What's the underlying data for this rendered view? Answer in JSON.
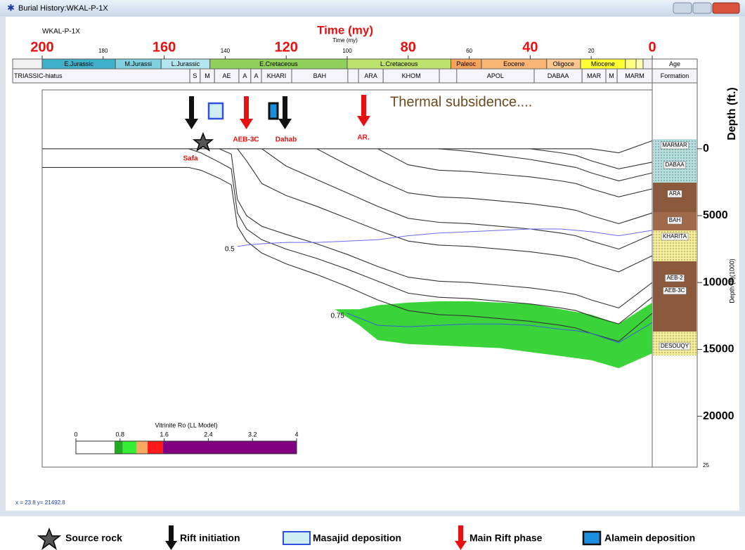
{
  "window_title": "Burial History:WKAL-P-1X",
  "status": "x = 23.8 y= 21492.8",
  "legend": [
    "Source rock",
    "Rift initiation",
    "Masajid deposition",
    "Main Rift phase",
    "Alamein deposition"
  ],
  "chart_data": {
    "type": "line",
    "well": "WKAL-P-1X",
    "title": "Time (my)",
    "x_label": "Time (my)",
    "y_label": "Depth (ft.)",
    "y2_label": "Depth (ft)(1000)",
    "y2_bottom_label": "25",
    "xlim": [
      200,
      0
    ],
    "xticks": [
      200,
      160,
      120,
      80,
      40,
      0
    ],
    "minor_xticks": [
      180,
      140,
      100,
      60,
      20
    ],
    "ylim": [
      23800,
      -4400
    ],
    "yticks": [
      0,
      5000,
      10000,
      15000,
      20000
    ],
    "x": [
      200,
      152,
      148,
      142,
      138,
      136,
      133,
      128,
      120,
      110,
      100,
      90,
      80,
      70,
      60,
      50,
      40,
      30,
      25,
      20,
      11,
      0
    ],
    "series": [
      {
        "color": "#333333",
        "values": [
          0,
          0,
          0,
          0,
          0,
          0,
          0,
          0,
          0,
          0,
          0,
          0,
          0,
          0,
          0,
          0,
          0,
          0,
          0,
          0,
          300,
          -600
        ]
      },
      {
        "color": "#333333",
        "values": [
          1400,
          1400,
          1600,
          2200,
          2700,
          5800,
          6900,
          7800,
          8600,
          9400,
          10300,
          11300,
          12100,
          12400,
          12500,
          12700,
          12900,
          13200,
          13400,
          13800,
          14400,
          12300
        ]
      },
      {
        "color": "#333333",
        "values": [
          null,
          0,
          300,
          1000,
          1500,
          4800,
          6000,
          6800,
          7500,
          8200,
          9000,
          9900,
          10800,
          11100,
          11200,
          11400,
          11600,
          11900,
          12100,
          12500,
          13100,
          11100
        ]
      },
      {
        "color": "#333333",
        "values": [
          null,
          null,
          null,
          0,
          400,
          3800,
          5000,
          5800,
          6400,
          7100,
          7900,
          8800,
          9600,
          9900,
          10000,
          10200,
          10400,
          10700,
          10900,
          11300,
          11900,
          10000
        ]
      },
      {
        "color": "#333333",
        "values": [
          null,
          null,
          null,
          null,
          null,
          0,
          900,
          2600,
          3500,
          4300,
          5200,
          6100,
          6900,
          7200,
          7300,
          7500,
          7700,
          8000,
          8200,
          8600,
          9200,
          8000
        ]
      },
      {
        "color": "#333333",
        "values": [
          null,
          null,
          null,
          null,
          null,
          null,
          null,
          0,
          1300,
          2300,
          3300,
          4300,
          5200,
          5500,
          5600,
          5800,
          6000,
          6300,
          6500,
          6900,
          7500,
          6400
        ]
      },
      {
        "color": "#333333",
        "values": [
          null,
          null,
          null,
          null,
          null,
          null,
          null,
          null,
          null,
          0,
          1200,
          2300,
          3300,
          3600,
          3700,
          3900,
          4100,
          4400,
          4600,
          5000,
          5600,
          4800
        ]
      },
      {
        "color": "#333333",
        "values": [
          null,
          null,
          null,
          null,
          null,
          null,
          null,
          null,
          null,
          null,
          null,
          0,
          1200,
          1600,
          1700,
          1900,
          2100,
          2400,
          2600,
          3000,
          3600,
          3000
        ]
      },
      {
        "color": "#333333",
        "values": [
          null,
          null,
          null,
          null,
          null,
          null,
          null,
          null,
          null,
          null,
          null,
          null,
          null,
          0,
          200,
          500,
          800,
          1200,
          1400,
          1800,
          2400,
          1800
        ]
      },
      {
        "color": "#333333",
        "values": [
          null,
          null,
          null,
          null,
          null,
          null,
          null,
          null,
          null,
          null,
          null,
          null,
          null,
          null,
          null,
          null,
          0,
          300,
          500,
          900,
          1500,
          1000
        ]
      }
    ],
    "isolines": [
      {
        "label": "0.5",
        "color": "#6a6af0",
        "values": [
          null,
          null,
          null,
          null,
          null,
          7300,
          7200,
          7100,
          7000,
          7000,
          6900,
          6800,
          6500,
          6300,
          6200,
          6100,
          6000,
          6000,
          6100,
          6200,
          6500,
          6100
        ]
      },
      {
        "label": "0.75",
        "color": "#3a5fd0",
        "values": [
          null,
          null,
          null,
          null,
          null,
          null,
          null,
          null,
          null,
          null,
          12300,
          13200,
          13300,
          13200,
          13100,
          13100,
          13200,
          13500,
          13600,
          13800,
          14500,
          13000
        ]
      }
    ],
    "oil_window": {
      "color": "#2fd12f",
      "x": [
        104,
        96,
        90,
        80,
        70,
        60,
        50,
        40,
        30,
        20,
        11,
        0
      ],
      "top": [
        12000,
        12000,
        11700,
        11500,
        11400,
        11400,
        11500,
        11600,
        12000,
        12400,
        13100,
        11500
      ],
      "bottom": [
        12000,
        13200,
        14300,
        14600,
        14700,
        14800,
        14900,
        15200,
        15500,
        15800,
        16400,
        15300
      ]
    },
    "age_header": "Age",
    "formation_header": "Formation",
    "ages": [
      {
        "name": "E.Jurassic",
        "start": 200,
        "end": 176,
        "color": "#3fb0c9"
      },
      {
        "name": "M.Jurassi",
        "start": 176,
        "end": 161,
        "color": "#7fd0e0"
      },
      {
        "name": "L.Jurassic",
        "start": 161,
        "end": 145,
        "color": "#b3e5ef"
      },
      {
        "name": "E.Cretaceous",
        "start": 145,
        "end": 100,
        "color": "#8fd05a"
      },
      {
        "name": "L.Cretaceous",
        "start": 100,
        "end": 66,
        "color": "#bde26c"
      },
      {
        "name": "Paleoc",
        "start": 66,
        "end": 56,
        "color": "#f9a35a"
      },
      {
        "name": "Eocene",
        "start": 56,
        "end": 34.6,
        "color": "#f9b574"
      },
      {
        "name": "Oligoce",
        "start": 34.6,
        "end": 23.5,
        "color": "#fdc890"
      },
      {
        "name": "Miocene",
        "start": 23.5,
        "end": 8.8,
        "color": "#ffff33"
      },
      {
        "name": "",
        "start": 8.8,
        "end": 5.3,
        "color": "#ffff80"
      },
      {
        "name": "",
        "start": 5.3,
        "end": 3,
        "color": "#ffffb0"
      }
    ],
    "formations": [
      {
        "name": "TRIASSIC-hiatus",
        "start": 200,
        "end": 151.6
      },
      {
        "name": "S",
        "start": 151.6,
        "end": 148.2
      },
      {
        "name": "M",
        "start": 148.2,
        "end": 143.5
      },
      {
        "name": "AE",
        "start": 143.5,
        "end": 135.5
      },
      {
        "name": "A",
        "start": 135.5,
        "end": 131.6
      },
      {
        "name": "A",
        "start": 131.6,
        "end": 128.1
      },
      {
        "name": "KHARI",
        "start": 128.1,
        "end": 118.2
      },
      {
        "name": "BAH",
        "start": 118.2,
        "end": 99.8
      },
      {
        "name": "ARA",
        "start": 96.3,
        "end": 88.2
      },
      {
        "name": "KHOM",
        "start": 88.2,
        "end": 69.8
      },
      {
        "name": "APOL",
        "start": 64.1,
        "end": 38.7
      },
      {
        "name": "DABAA",
        "start": 38.7,
        "end": 23
      },
      {
        "name": "MAR",
        "start": 23,
        "end": 15.2
      },
      {
        "name": "M",
        "start": 15.2,
        "end": 11.5
      },
      {
        "name": "MARM",
        "start": 11.5,
        "end": 0
      }
    ],
    "formation_column": [
      "MARMAR",
      "DABAA",
      "ARA",
      "BAH",
      "KHARITA",
      "AEB-2",
      "AEB-3C",
      "DESOUQY"
    ],
    "annotations": [
      "Thermal subsidence....",
      "Safa",
      "AEB-3C",
      "Dahab",
      "AR."
    ],
    "colorbar": {
      "title": "Vitrinite Ro (LL Model)",
      "lim": [
        0,
        4
      ],
      "ticks": [
        0,
        0.8,
        1.6,
        2.4,
        3.2,
        4
      ],
      "segments": [
        {
          "from": 0,
          "to": 0.7,
          "color": "#ffffff"
        },
        {
          "from": 0.7,
          "to": 0.85,
          "color": "#22aa22"
        },
        {
          "from": 0.85,
          "to": 1.1,
          "color": "#33ee33"
        },
        {
          "from": 1.1,
          "to": 1.3,
          "color": "#f8a860"
        },
        {
          "from": 1.3,
          "to": 1.58,
          "color": "#ff1a1a"
        },
        {
          "from": 1.58,
          "to": 4,
          "color": "#800080"
        }
      ]
    }
  }
}
